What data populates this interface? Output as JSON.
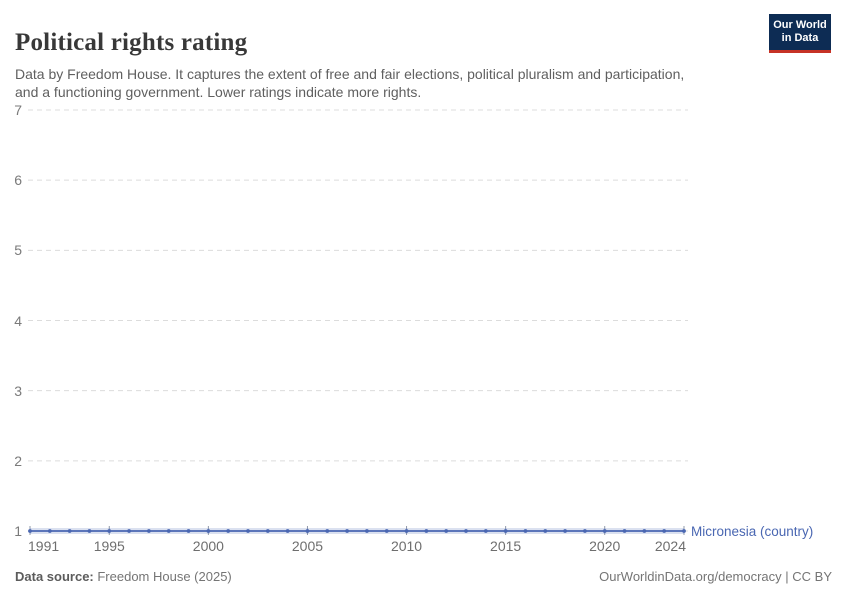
{
  "header": {
    "title": "Political rights rating",
    "subtitle_line1": "Data by Freedom House. It captures the extent of free and fair elections, political pluralism and participation,",
    "subtitle_line2": "and a functioning government. Lower ratings indicate more rights.",
    "logo_line1": "Our World",
    "logo_line2": "in Data"
  },
  "chart_data": {
    "type": "line",
    "title": "Political rights rating",
    "x": [
      1991,
      1992,
      1993,
      1994,
      1995,
      1996,
      1997,
      1998,
      1999,
      2000,
      2001,
      2002,
      2003,
      2004,
      2005,
      2006,
      2007,
      2008,
      2009,
      2010,
      2011,
      2012,
      2013,
      2014,
      2015,
      2016,
      2017,
      2018,
      2019,
      2020,
      2021,
      2022,
      2023,
      2024
    ],
    "series": [
      {
        "name": "Micronesia (country)",
        "color": "#4a67b2",
        "values": [
          1,
          1,
          1,
          1,
          1,
          1,
          1,
          1,
          1,
          1,
          1,
          1,
          1,
          1,
          1,
          1,
          1,
          1,
          1,
          1,
          1,
          1,
          1,
          1,
          1,
          1,
          1,
          1,
          1,
          1,
          1,
          1,
          1,
          1
        ]
      }
    ],
    "x_ticks": [
      1991,
      1995,
      2000,
      2005,
      2010,
      2015,
      2020,
      2024
    ],
    "y_ticks": [
      1,
      2,
      3,
      4,
      5,
      6,
      7
    ],
    "xlim": [
      1991,
      2024
    ],
    "ylim": [
      1,
      7
    ],
    "xlabel": "",
    "ylabel": "",
    "grid": "horizontal-dashed",
    "legend_position": "end-of-line"
  },
  "footer": {
    "source_label": "Data source:",
    "source_value": " Freedom House (2025)",
    "credit": "OurWorldinData.org/democracy | CC BY"
  },
  "colors": {
    "line": "#4a67b2",
    "series_label": "#4a67b2",
    "grid": "#dcdcdc",
    "axis_text": "#7a7a7a",
    "tick_mark": "#8f98a9",
    "halo": "rgba(74,103,178,0.20)",
    "logo_bg": "#0d2c54",
    "logo_stripe": "#c63226"
  }
}
